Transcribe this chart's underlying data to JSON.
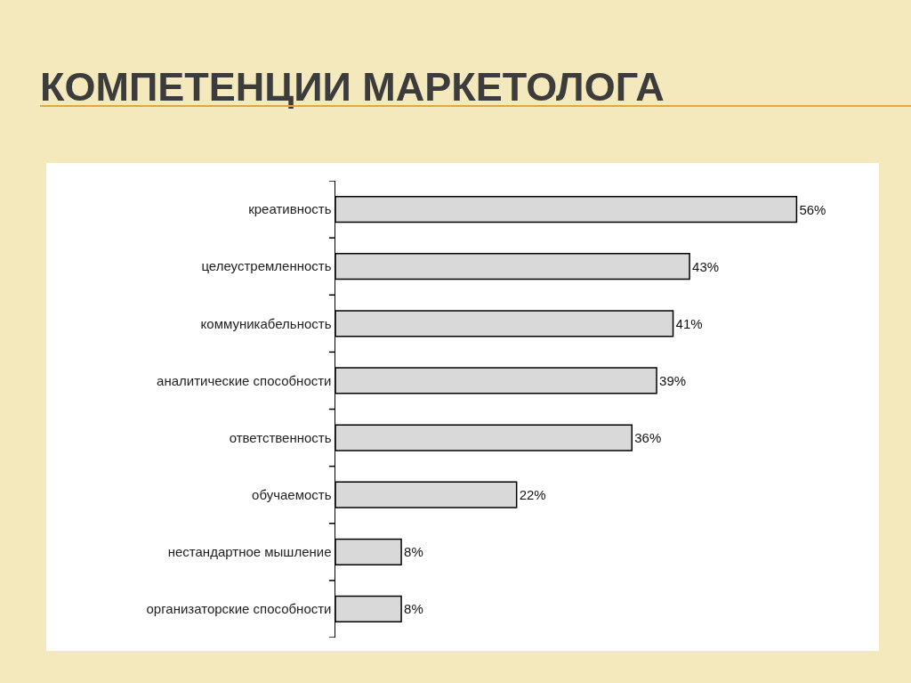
{
  "chart_data": {
    "type": "bar",
    "title": "КОМПЕТЕНЦИИ МАРКЕТОЛОГА",
    "orientation": "horizontal",
    "categories": [
      "креативность",
      "целеустремленность",
      "коммуникабельность",
      "аналитические способности",
      "ответственность",
      "обучаемость",
      "нестандартное мышление",
      "организаторские способности"
    ],
    "values": [
      56,
      43,
      41,
      39,
      36,
      22,
      8,
      8
    ],
    "value_labels": [
      "56%",
      "43%",
      "41%",
      "39%",
      "36%",
      "22%",
      "8%",
      "8%"
    ],
    "color": "#d9d9d9"
  }
}
